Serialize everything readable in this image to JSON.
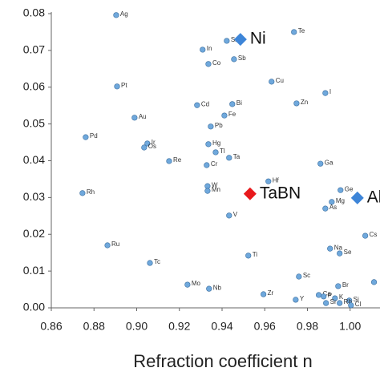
{
  "chart_data": {
    "type": "scatter",
    "xlabel": "Refraction coefficient n",
    "xlim": [
      0.86,
      1.014
    ],
    "ylim": [
      0,
      0.08
    ],
    "xticks": [
      {
        "value": 0.86,
        "label": "0.86"
      },
      {
        "value": 0.88,
        "label": "0.88"
      },
      {
        "value": 0.9,
        "label": "0.90"
      },
      {
        "value": 0.92,
        "label": "0.92"
      },
      {
        "value": 0.94,
        "label": "0.94"
      },
      {
        "value": 0.96,
        "label": "0.96"
      },
      {
        "value": 0.98,
        "label": "0.98"
      },
      {
        "value": 1,
        "label": "1.00"
      }
    ],
    "yticks": [
      {
        "value": 0,
        "label": "0.00"
      },
      {
        "value": 0.01,
        "label": "0.01"
      },
      {
        "value": 0.02,
        "label": "0.02"
      },
      {
        "value": 0.03,
        "label": "0.03"
      },
      {
        "value": 0.04,
        "label": "0.04"
      },
      {
        "value": 0.05,
        "label": "0.05"
      },
      {
        "value": 0.06,
        "label": "0.06"
      },
      {
        "value": 0.07,
        "label": "0.07"
      },
      {
        "value": 0.08,
        "label": "0.08"
      }
    ],
    "series": [
      {
        "color": "#6fa8dc",
        "marker": "circle",
        "labels": [
          "Ag",
          "Sn",
          "Te",
          "In",
          "Sb",
          "Co",
          "Cu",
          "Pt",
          "I",
          "Cd",
          "Bi",
          "Zn",
          "Au",
          "Fe",
          "Pb",
          "Pd",
          "Ir",
          "Os",
          "Hg",
          "Tl",
          "Ta",
          "Re",
          "Cr",
          "Ga",
          "Hf",
          "W",
          "Mn",
          "Ge",
          "Rh",
          "Mg",
          "As",
          "V",
          "Cs",
          "Ru",
          "Na",
          "Se",
          "Ti",
          "Tc",
          "Sc",
          "Mo",
          "Br",
          "Nb",
          "Ca",
          "P",
          "Zr",
          "K",
          "Si",
          "Y",
          "Sr",
          "Rb",
          "Cl",
          null
        ],
        "x": [
          0.8904,
          0.9422,
          0.9737,
          0.9309,
          0.9456,
          0.9336,
          0.9632,
          0.8908,
          0.9884,
          0.9283,
          0.9448,
          0.9749,
          0.899,
          0.9411,
          0.9347,
          0.8761,
          0.905,
          0.9035,
          0.9336,
          0.937,
          0.9433,
          0.9152,
          0.9328,
          0.9861,
          0.9617,
          0.9332,
          0.9332,
          0.9955,
          0.8746,
          0.9914,
          0.9884,
          0.9433,
          1.0071,
          0.8863,
          0.9906,
          0.9951,
          0.9523,
          0.9062,
          0.976,
          0.9238,
          0.9944,
          0.9339,
          0.9853,
          0.9876,
          0.9594,
          0.9929,
          0.9996,
          0.9745,
          0.9887,
          0.9951,
          1.0004,
          1.0112
        ],
        "values": [
          0.0796,
          0.0726,
          0.075,
          0.0702,
          0.0676,
          0.0663,
          0.0615,
          0.0602,
          0.0584,
          0.0551,
          0.0554,
          0.0556,
          0.0517,
          0.0523,
          0.0493,
          0.0464,
          0.0447,
          0.0436,
          0.0445,
          0.0423,
          0.0408,
          0.0399,
          0.0388,
          0.0392,
          0.0344,
          0.0331,
          0.0318,
          0.032,
          0.0312,
          0.0288,
          0.027,
          0.0251,
          0.0196,
          0.017,
          0.0161,
          0.0148,
          0.0142,
          0.0122,
          0.0085,
          0.0063,
          0.0059,
          0.0052,
          0.0035,
          0.0031,
          0.0037,
          0.0026,
          0.002,
          0.0022,
          0.0013,
          0.0013,
          0.0007,
          0.007
        ]
      },
      {
        "color": "#3d85d8",
        "marker": "diamond",
        "labels": [
          "Ni",
          "Al"
        ],
        "x": [
          0.9486,
          1.0034
        ],
        "values": [
          0.073,
          0.0299
        ]
      },
      {
        "color": "#e8191c",
        "marker": "diamond",
        "labels": [
          "TaBN"
        ],
        "x": [
          0.9531
        ],
        "values": [
          0.031
        ]
      }
    ]
  }
}
